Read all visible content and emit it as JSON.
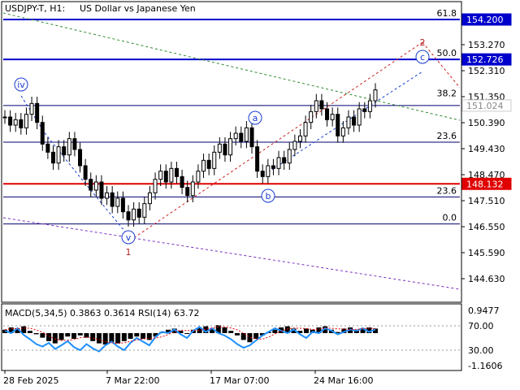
{
  "header": {
    "symbol": "USDJPY-T, H1:",
    "description": "US Dollar vs Japanese Yen"
  },
  "colors": {
    "background": "#ffffff",
    "candle": "#000000",
    "level_blue": "#0000cc",
    "level_red": "#e00000",
    "level_navy": "#00006e",
    "wave_label_blue": "#1a3ccf",
    "wave_label_red": "#b22222",
    "macd_hist": "#000000",
    "macd_signal": "#e00000",
    "rsi_line": "#1e90ff",
    "trend_green": "#2e8b2e",
    "trend_purple": "#7b2fbe"
  },
  "chart_data": {
    "type": "candlestick",
    "ylim": [
      144.0,
      155.0
    ],
    "price_ticks": [
      "153.270",
      "152.310",
      "151.350",
      "150.390",
      "149.430",
      "148.470",
      "147.510",
      "146.550",
      "145.590",
      "144.630"
    ],
    "time_ticks": [
      "28 Feb 2025",
      "7 Mar 22:00",
      "17 Mar 07:00",
      "24 Mar 16:00"
    ],
    "highlighted_prices": [
      {
        "label": "154.200",
        "value": 154.2,
        "style": "blue"
      },
      {
        "label": "152.726",
        "value": 152.726,
        "style": "blue"
      },
      {
        "label": "151.024",
        "value": 151.024,
        "style": "gray"
      },
      {
        "label": "148.132",
        "value": 148.132,
        "style": "red"
      }
    ],
    "fib_levels_upper": [
      {
        "label": "61.8",
        "value": 154.2
      },
      {
        "label": "50.0",
        "value": 152.726
      },
      {
        "label": "38.2",
        "value": 151.25
      },
      {
        "label": "23.6",
        "value": 149.67
      }
    ],
    "fib_levels_lower": [
      {
        "label": "23.6",
        "value": 147.65
      },
      {
        "label": "0.0",
        "value": 146.65
      }
    ],
    "close_series": [
      150.6,
      150.3,
      150.5,
      150.2,
      150.7,
      151.1,
      150.4,
      149.6,
      149.3,
      148.9,
      149.5,
      149.2,
      149.8,
      149.4,
      148.8,
      148.3,
      147.9,
      148.2,
      147.6,
      147.8,
      147.3,
      147.6,
      147.1,
      146.8,
      147.2,
      146.9,
      147.4,
      147.8,
      148.3,
      148.6,
      148.2,
      148.7,
      148.4,
      148.0,
      147.7,
      148.2,
      148.6,
      149.0,
      148.7,
      149.3,
      149.6,
      149.2,
      149.8,
      150.0,
      149.7,
      150.2,
      149.5,
      148.6,
      148.4,
      148.8,
      148.7,
      149.1,
      148.9,
      149.4,
      149.7,
      149.9,
      150.4,
      150.8,
      151.2,
      150.9,
      150.5,
      150.7,
      149.9,
      150.2,
      150.6,
      150.3,
      150.9,
      150.8,
      151.2,
      151.6
    ],
    "wave_labels": [
      {
        "text": "iv",
        "color": "blue",
        "circled": true
      },
      {
        "text": "v",
        "color": "blue",
        "circled": true
      },
      {
        "text": "a",
        "color": "blue",
        "circled": true
      },
      {
        "text": "b",
        "color": "blue",
        "circled": true
      },
      {
        "text": "c",
        "color": "blue",
        "circled": true
      },
      {
        "text": "1",
        "color": "red",
        "circled": false
      },
      {
        "text": "2",
        "color": "red",
        "circled": false
      }
    ]
  },
  "indicator": {
    "title": "MACD(5,34,5) 0.3863 0.3614 RSI(14) 63.72",
    "ticks": [
      "0.9477",
      "70.00",
      "30.00",
      "-1.1606"
    ],
    "macd_hist": [
      0.3,
      0.5,
      0.4,
      0.6,
      0.2,
      -0.1,
      -0.4,
      -0.7,
      -0.9,
      -0.6,
      -0.3,
      -0.5,
      -0.2,
      -0.4,
      -0.7,
      -0.9,
      -1.0,
      -0.8,
      -0.9,
      -0.7,
      -0.5,
      -0.3,
      -0.5,
      -0.6,
      -0.3,
      0.1,
      0.3,
      0.4,
      0.2,
      0.0,
      0.3,
      0.5,
      0.6,
      0.4,
      0.7,
      0.5,
      0.2,
      -0.2,
      -0.6,
      -0.8,
      -0.5,
      -0.2,
      0.1,
      0.3,
      0.5,
      0.6,
      0.4,
      0.2,
      0.4,
      0.3,
      0.5,
      0.6,
      0.3,
      0.1,
      0.4,
      0.5,
      0.3,
      0.4,
      0.5,
      0.4
    ],
    "rsi": [
      62,
      58,
      66,
      55,
      48,
      40,
      36,
      42,
      32,
      38,
      45,
      35,
      30,
      40,
      33,
      28,
      38,
      44,
      36,
      30,
      42,
      50,
      44,
      38,
      52,
      60,
      58,
      64,
      56,
      50,
      62,
      68,
      60,
      66,
      58,
      54,
      48,
      40,
      34,
      38,
      46,
      54,
      60,
      66,
      62,
      58,
      64,
      56,
      50,
      60,
      58,
      66,
      62,
      56,
      60,
      64,
      62,
      66,
      60,
      64
    ]
  }
}
